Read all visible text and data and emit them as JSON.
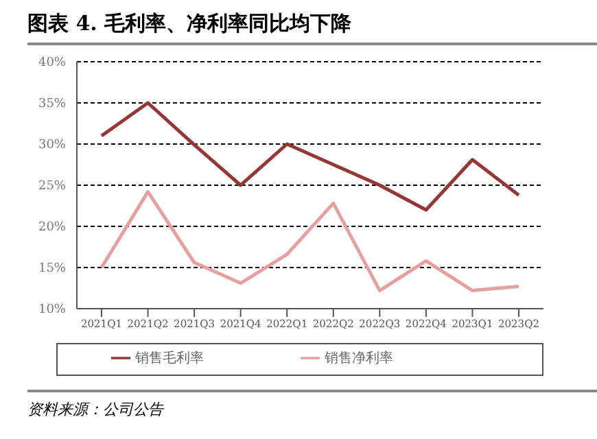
{
  "chart_data": {
    "type": "line",
    "title": "图表 4. 毛利率、净利率同比均下降",
    "categories": [
      "2021Q1",
      "2021Q2",
      "2021Q3",
      "2021Q4",
      "2022Q1",
      "2022Q2",
      "2022Q3",
      "2022Q4",
      "2023Q1",
      "2023Q2"
    ],
    "series": [
      {
        "name": "销售毛利率",
        "color": "#953735",
        "values": [
          31,
          35,
          29.9,
          25,
          30,
          27.5,
          25,
          22,
          28.1,
          23.8
        ]
      },
      {
        "name": "销售净利率",
        "color": "#e6a0a0",
        "values": [
          15,
          24.2,
          15.6,
          13.1,
          16.6,
          22.8,
          12.2,
          15.8,
          12.2,
          12.7
        ]
      }
    ],
    "ylim": [
      10,
      40
    ],
    "yticks": [
      {
        "value": 10,
        "label": "10%"
      },
      {
        "value": 15,
        "label": "15%"
      },
      {
        "value": 20,
        "label": "20%"
      },
      {
        "value": 25,
        "label": "25%"
      },
      {
        "value": 30,
        "label": "30%"
      },
      {
        "value": 35,
        "label": "35%"
      },
      {
        "value": 40,
        "label": "40%"
      }
    ],
    "grid": "y",
    "legend": "bottom",
    "marker": "none",
    "line_style": "solid",
    "annotations": [
      "资料来源：公司公告"
    ]
  }
}
